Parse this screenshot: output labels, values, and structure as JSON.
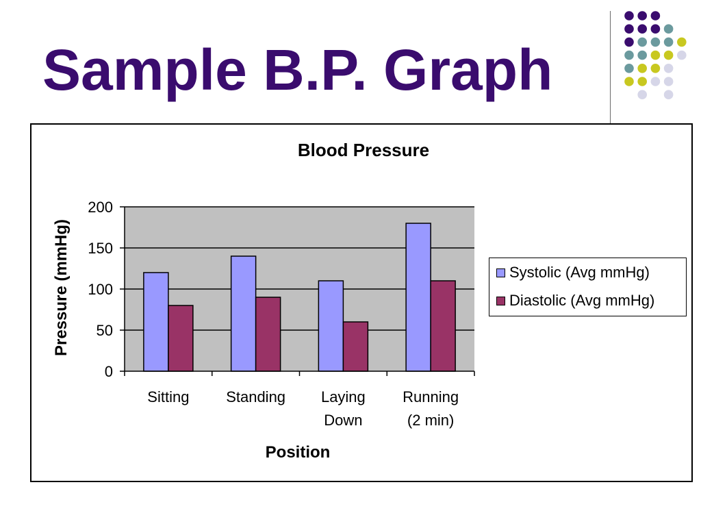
{
  "slide": {
    "title": "Sample B.P. Graph"
  },
  "decoration": {
    "dot_colors": [
      "#3a0c6e",
      "#6b9a9e",
      "#c8c820",
      "#d6d6e8"
    ]
  },
  "chart_data": {
    "type": "bar",
    "title": "Blood Pressure",
    "xlabel": "Position",
    "ylabel": "Pressure (mmHg)",
    "categories": [
      [
        "Sitting"
      ],
      [
        "Standing"
      ],
      [
        "Laying",
        "Down"
      ],
      [
        "Running",
        "(2 min)"
      ]
    ],
    "series": [
      {
        "name": "Systolic (Avg mmHg)",
        "values": [
          120,
          140,
          110,
          180
        ],
        "color": "#9999ff"
      },
      {
        "name": "Diastolic (Avg mmHg)",
        "values": [
          80,
          90,
          60,
          110
        ],
        "color": "#993366"
      }
    ],
    "ylim": [
      0,
      200
    ],
    "yticks": [
      "0",
      "50",
      "100",
      "150",
      "200"
    ],
    "grid": true,
    "plot_background": "#c0c0c0",
    "legend_position": "right"
  }
}
